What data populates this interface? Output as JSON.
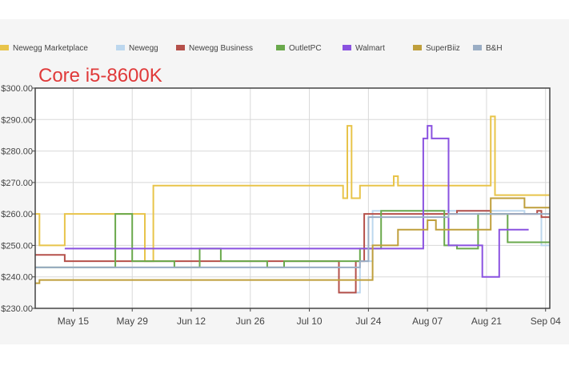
{
  "title": "Core i5-8600K",
  "colors": {
    "title": "#e03a3a",
    "axis": "#444444",
    "grid": "#d8d8d8",
    "plot_bg": "#ffffff",
    "panel_bg": "#f5f5f5"
  },
  "chart_data": {
    "type": "line",
    "step": true,
    "title": "Core i5-8600K",
    "xlabel": "",
    "ylabel": "",
    "x_range": [
      "2018-05-06",
      "2018-09-05"
    ],
    "ylim": [
      230,
      300
    ],
    "y_ticks": [
      230,
      240,
      250,
      260,
      270,
      280,
      290,
      300
    ],
    "y_tick_labels": [
      "$230.00",
      "$240.00",
      "$250.00",
      "$260.00",
      "$270.00",
      "$280.00",
      "$290.00",
      "$300.00"
    ],
    "x_ticks": [
      "2018-05-15",
      "2018-05-29",
      "2018-06-12",
      "2018-06-26",
      "2018-07-10",
      "2018-07-24",
      "2018-08-07",
      "2018-08-21",
      "2018-09-04"
    ],
    "x_tick_labels": [
      "May 15",
      "May 29",
      "Jun 12",
      "Jun 26",
      "Jul 10",
      "Jul 24",
      "Aug 07",
      "Aug 21",
      "Sep 04"
    ],
    "grid": true,
    "legend_position": "top",
    "series": [
      {
        "name": "Newegg Marketplace",
        "color": "#e8c44a",
        "points": [
          [
            "2018-05-06",
            260
          ],
          [
            "2018-05-07",
            250
          ],
          [
            "2018-05-13",
            260
          ],
          [
            "2018-06-01",
            245
          ],
          [
            "2018-06-03",
            269
          ],
          [
            "2018-07-18",
            265
          ],
          [
            "2018-07-19",
            288
          ],
          [
            "2018-07-20",
            265
          ],
          [
            "2018-07-22",
            269
          ],
          [
            "2018-07-30",
            272
          ],
          [
            "2018-07-31",
            269
          ],
          [
            "2018-08-22",
            291
          ],
          [
            "2018-08-23",
            266
          ],
          [
            "2018-09-05",
            266
          ]
        ]
      },
      {
        "name": "Newegg",
        "color": "#bcd7ee",
        "points": [
          [
            "2018-05-06",
            243
          ],
          [
            "2018-07-17",
            235
          ],
          [
            "2018-07-22",
            245
          ],
          [
            "2018-07-25",
            261
          ],
          [
            "2018-08-30",
            260
          ],
          [
            "2018-09-03",
            250
          ],
          [
            "2018-09-05",
            250
          ]
        ]
      },
      {
        "name": "Newegg Business",
        "color": "#b5504a",
        "points": [
          [
            "2018-05-06",
            247
          ],
          [
            "2018-05-13",
            245
          ],
          [
            "2018-07-17",
            235
          ],
          [
            "2018-07-21",
            245
          ],
          [
            "2018-07-23",
            260
          ],
          [
            "2018-08-14",
            261
          ],
          [
            "2018-08-22",
            260
          ],
          [
            "2018-09-02",
            261
          ],
          [
            "2018-09-03",
            259
          ],
          [
            "2018-09-05",
            259
          ]
        ]
      },
      {
        "name": "OutletPC",
        "color": "#6aa94c",
        "points": [
          [
            "2018-05-06",
            243
          ],
          [
            "2018-05-25",
            260
          ],
          [
            "2018-05-29",
            245
          ],
          [
            "2018-06-08",
            243
          ],
          [
            "2018-06-14",
            249
          ],
          [
            "2018-06-19",
            245
          ],
          [
            "2018-06-30",
            243
          ],
          [
            "2018-07-04",
            245
          ],
          [
            "2018-07-22",
            249
          ],
          [
            "2018-07-27",
            261
          ],
          [
            "2018-08-11",
            250
          ],
          [
            "2018-08-14",
            249
          ],
          [
            "2018-08-19",
            260
          ],
          [
            "2018-08-26",
            251
          ],
          [
            "2018-09-05",
            251
          ]
        ]
      },
      {
        "name": "Walmart",
        "color": "#8a52e0",
        "points": [
          [
            "2018-05-13",
            249
          ],
          [
            "2018-08-06",
            284
          ],
          [
            "2018-08-07",
            288
          ],
          [
            "2018-08-08",
            284
          ],
          [
            "2018-08-12",
            250
          ],
          [
            "2018-08-20",
            240
          ],
          [
            "2018-08-24",
            255
          ],
          [
            "2018-08-31",
            255
          ]
        ]
      },
      {
        "name": "SuperBiiz",
        "color": "#bf9f3c",
        "points": [
          [
            "2018-05-06",
            238
          ],
          [
            "2018-05-07",
            239
          ],
          [
            "2018-07-24",
            239
          ],
          [
            "2018-07-25",
            250
          ],
          [
            "2018-07-31",
            255
          ],
          [
            "2018-08-07",
            258
          ],
          [
            "2018-08-09",
            255
          ],
          [
            "2018-08-22",
            265
          ],
          [
            "2018-08-30",
            262
          ],
          [
            "2018-09-05",
            262
          ]
        ]
      },
      {
        "name": "B&H",
        "color": "#9aadc4",
        "points": [
          [
            "2018-05-06",
            243
          ],
          [
            "2018-07-22",
            245
          ],
          [
            "2018-07-24",
            259
          ],
          [
            "2018-08-12",
            260
          ],
          [
            "2018-08-30",
            260
          ],
          [
            "2018-09-05",
            260
          ]
        ]
      }
    ]
  }
}
